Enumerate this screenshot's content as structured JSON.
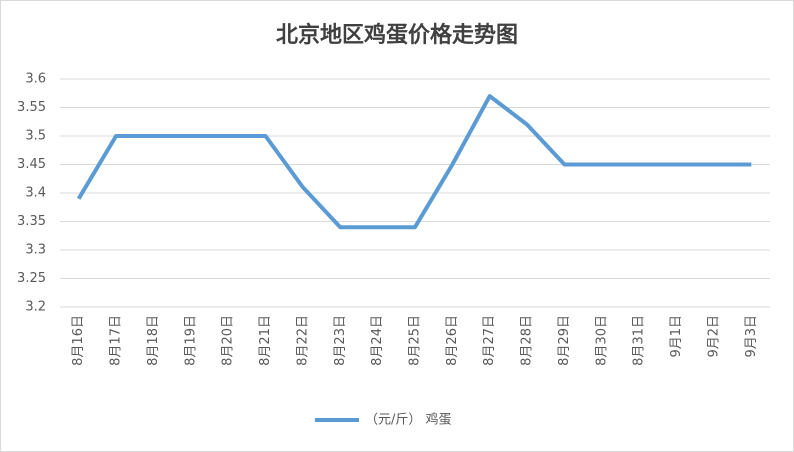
{
  "chart_data": {
    "type": "line",
    "title": "北京地区鸡蛋价格走势图",
    "categories": [
      "8月16日",
      "8月17日",
      "8月18日",
      "8月19日",
      "8月20日",
      "8月21日",
      "8月22日",
      "8月23日",
      "8月24日",
      "8月25日",
      "8月26日",
      "8月27日",
      "8月28日",
      "8月29日",
      "8月30日",
      "8月31日",
      "9月1日",
      "9月2日",
      "9月3日"
    ],
    "series": [
      {
        "name": "（元/斤） 鸡蛋",
        "color": "#5b9bd5",
        "values": [
          3.39,
          3.5,
          3.5,
          3.5,
          3.5,
          3.5,
          3.41,
          3.34,
          3.34,
          3.34,
          3.45,
          3.57,
          3.52,
          3.45,
          3.45,
          3.45,
          3.45,
          3.45,
          3.45
        ]
      }
    ],
    "ylim": [
      3.2,
      3.6
    ],
    "yticks": [
      3.2,
      3.25,
      3.3,
      3.35,
      3.4,
      3.45,
      3.5,
      3.55,
      3.6
    ],
    "grid": true,
    "legend": "bottom"
  }
}
